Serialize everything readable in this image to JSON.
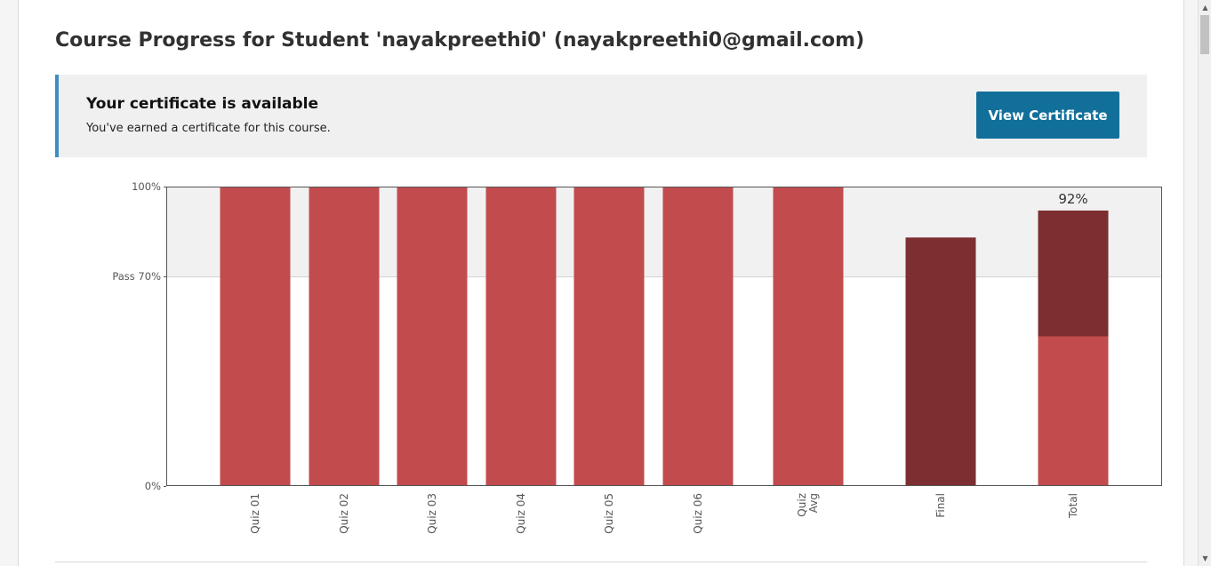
{
  "page": {
    "title": "Course Progress for Student 'nayakpreethi0' (nayakpreethi0@gmail.com)"
  },
  "certificate": {
    "heading": "Your certificate is available",
    "message": "You've earned a certificate for this course.",
    "button_label": "View Certificate",
    "accent_color": "#3b8ec4",
    "button_color": "#126f9a"
  },
  "chart_data": {
    "type": "bar",
    "categories": [
      "Quiz 01",
      "Quiz 02",
      "Quiz 03",
      "Quiz 04",
      "Quiz 05",
      "Quiz 06",
      "Quiz Avg",
      "Final",
      "Total"
    ],
    "series": [
      {
        "values": [
          100,
          100,
          100,
          100,
          100,
          100,
          100,
          0,
          50
        ],
        "color": "#c24b4e"
      },
      {
        "values": [
          0,
          0,
          0,
          0,
          0,
          0,
          0,
          83,
          42
        ],
        "color": "#7d2e30"
      }
    ],
    "total_label": "92%",
    "y_ticks": [
      {
        "value": 100,
        "label": "100%"
      },
      {
        "value": 70,
        "label": "Pass 70%"
      },
      {
        "value": 0,
        "label": "0%"
      }
    ],
    "pass_threshold": 70,
    "passing_band_color": "#f1f1f1",
    "ylim": [
      0,
      100
    ]
  },
  "scrollbar": {
    "up_icon": "triangle-up-icon",
    "down_icon": "triangle-down-icon"
  }
}
